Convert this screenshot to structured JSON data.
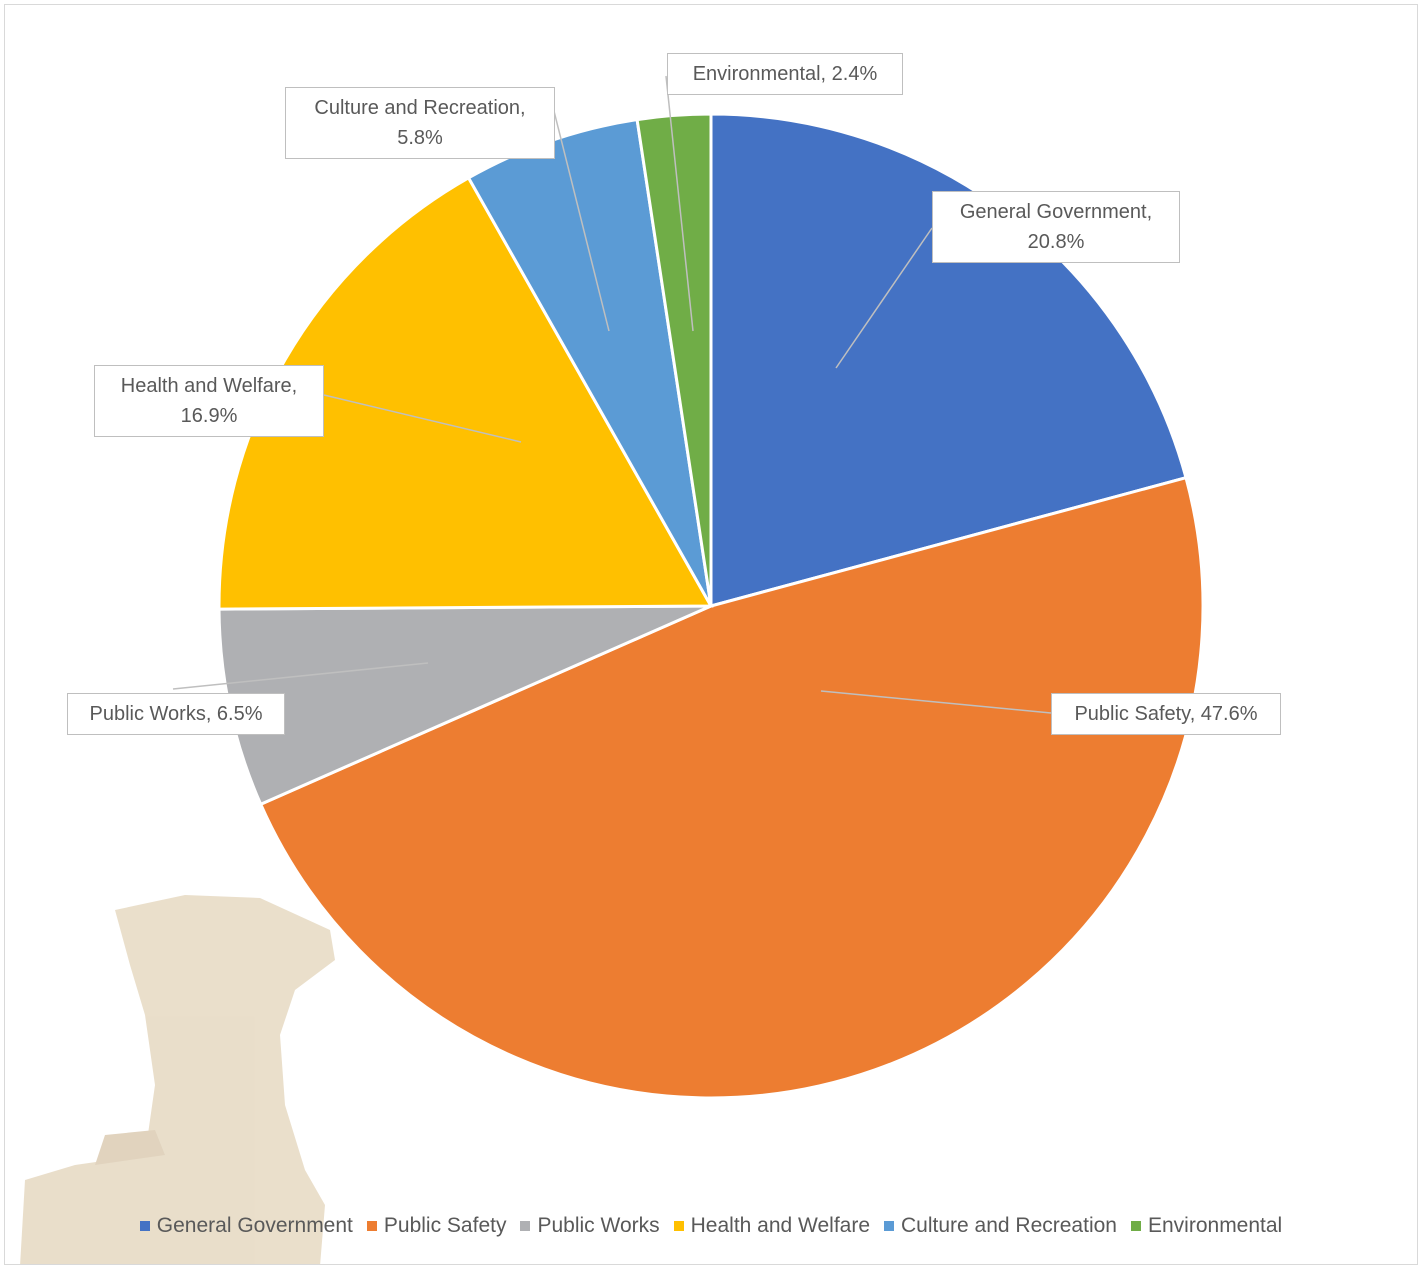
{
  "chart_data": {
    "type": "pie",
    "categories": [
      "General Government",
      "Public Safety",
      "Public Works",
      "Health and Welfare",
      "Culture and Recreation",
      "Environmental"
    ],
    "values": [
      20.8,
      47.6,
      6.5,
      16.9,
      5.8,
      2.4
    ],
    "value_labels": [
      "General Government, 20.8%",
      "Public Safety, 47.6%",
      "Public Works, 6.5%",
      "Health and Welfare, 16.9%",
      "Culture and Recreation, 5.8%",
      "Environmental, 2.4%"
    ],
    "colors": [
      "#4472c4",
      "#ed7d31",
      "#afb0b3",
      "#ffc000",
      "#5b9bd5",
      "#70ad47"
    ],
    "legend": "bottom"
  }
}
